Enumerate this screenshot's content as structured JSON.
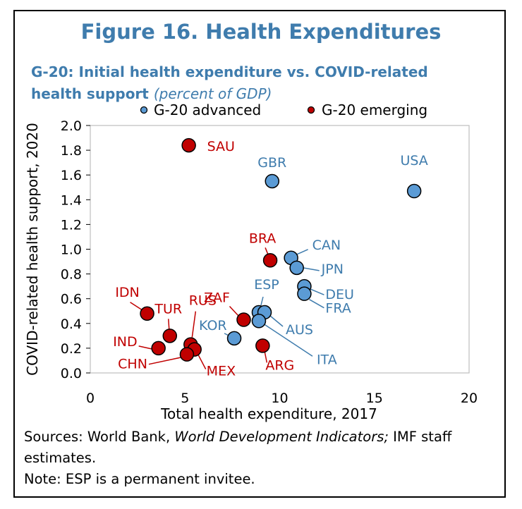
{
  "figure": {
    "title": "Figure 16. Health Expenditures",
    "subtitle_bold": "G-20: Initial health expenditure vs. COVID-related health support",
    "subtitle_units": "(percent of GDP)"
  },
  "sources": {
    "prefix": "Sources: World Bank, ",
    "italic": "World Development Indicators;",
    "suffix": " IMF staff estimates."
  },
  "note": "Note: ESP is a permanent invitee.",
  "colors": {
    "advanced": "#5b9bd5",
    "emerging": "#c00000",
    "advanced_text": "#3f7cad",
    "emerging_text": "#c00000"
  },
  "chart_data": {
    "type": "scatter",
    "xlabel": "Total health expenditure, 2017",
    "ylabel": "COVID-related health support, 2020",
    "xlim": [
      0,
      20
    ],
    "ylim": [
      0,
      2.0
    ],
    "x_ticks": [
      "0",
      "5",
      "10",
      "15",
      "20"
    ],
    "y_ticks": [
      "0.0",
      "0.2",
      "0.4",
      "0.6",
      "0.8",
      "1.0",
      "1.2",
      "1.4",
      "1.6",
      "1.8",
      "2.0"
    ],
    "grid": false,
    "legend_position": "top",
    "series": [
      {
        "name": "G-20 advanced",
        "points": [
          {
            "label": "USA",
            "x": 17.1,
            "y": 1.47
          },
          {
            "label": "GBR",
            "x": 9.6,
            "y": 1.55
          },
          {
            "label": "CAN",
            "x": 10.6,
            "y": 0.93
          },
          {
            "label": "JPN",
            "x": 10.9,
            "y": 0.85
          },
          {
            "label": "DEU",
            "x": 11.3,
            "y": 0.7
          },
          {
            "label": "FRA",
            "x": 11.3,
            "y": 0.64
          },
          {
            "label": "ESP",
            "x": 8.9,
            "y": 0.49
          },
          {
            "label": "AUS",
            "x": 9.2,
            "y": 0.49
          },
          {
            "label": "ITA",
            "x": 8.9,
            "y": 0.42
          },
          {
            "label": "KOR",
            "x": 7.6,
            "y": 0.28
          }
        ]
      },
      {
        "name": "G-20 emerging",
        "points": [
          {
            "label": "SAU",
            "x": 5.2,
            "y": 1.84
          },
          {
            "label": "BRA",
            "x": 9.5,
            "y": 0.91
          },
          {
            "label": "ZAF",
            "x": 8.1,
            "y": 0.43
          },
          {
            "label": "IDN",
            "x": 3.0,
            "y": 0.48
          },
          {
            "label": "TUR",
            "x": 4.2,
            "y": 0.3
          },
          {
            "label": "RUS",
            "x": 5.3,
            "y": 0.23
          },
          {
            "label": "IND",
            "x": 3.6,
            "y": 0.2
          },
          {
            "label": "MEX",
            "x": 5.5,
            "y": 0.19
          },
          {
            "label": "CHN",
            "x": 5.1,
            "y": 0.15
          },
          {
            "label": "ARG",
            "x": 9.1,
            "y": 0.22
          }
        ]
      }
    ]
  }
}
